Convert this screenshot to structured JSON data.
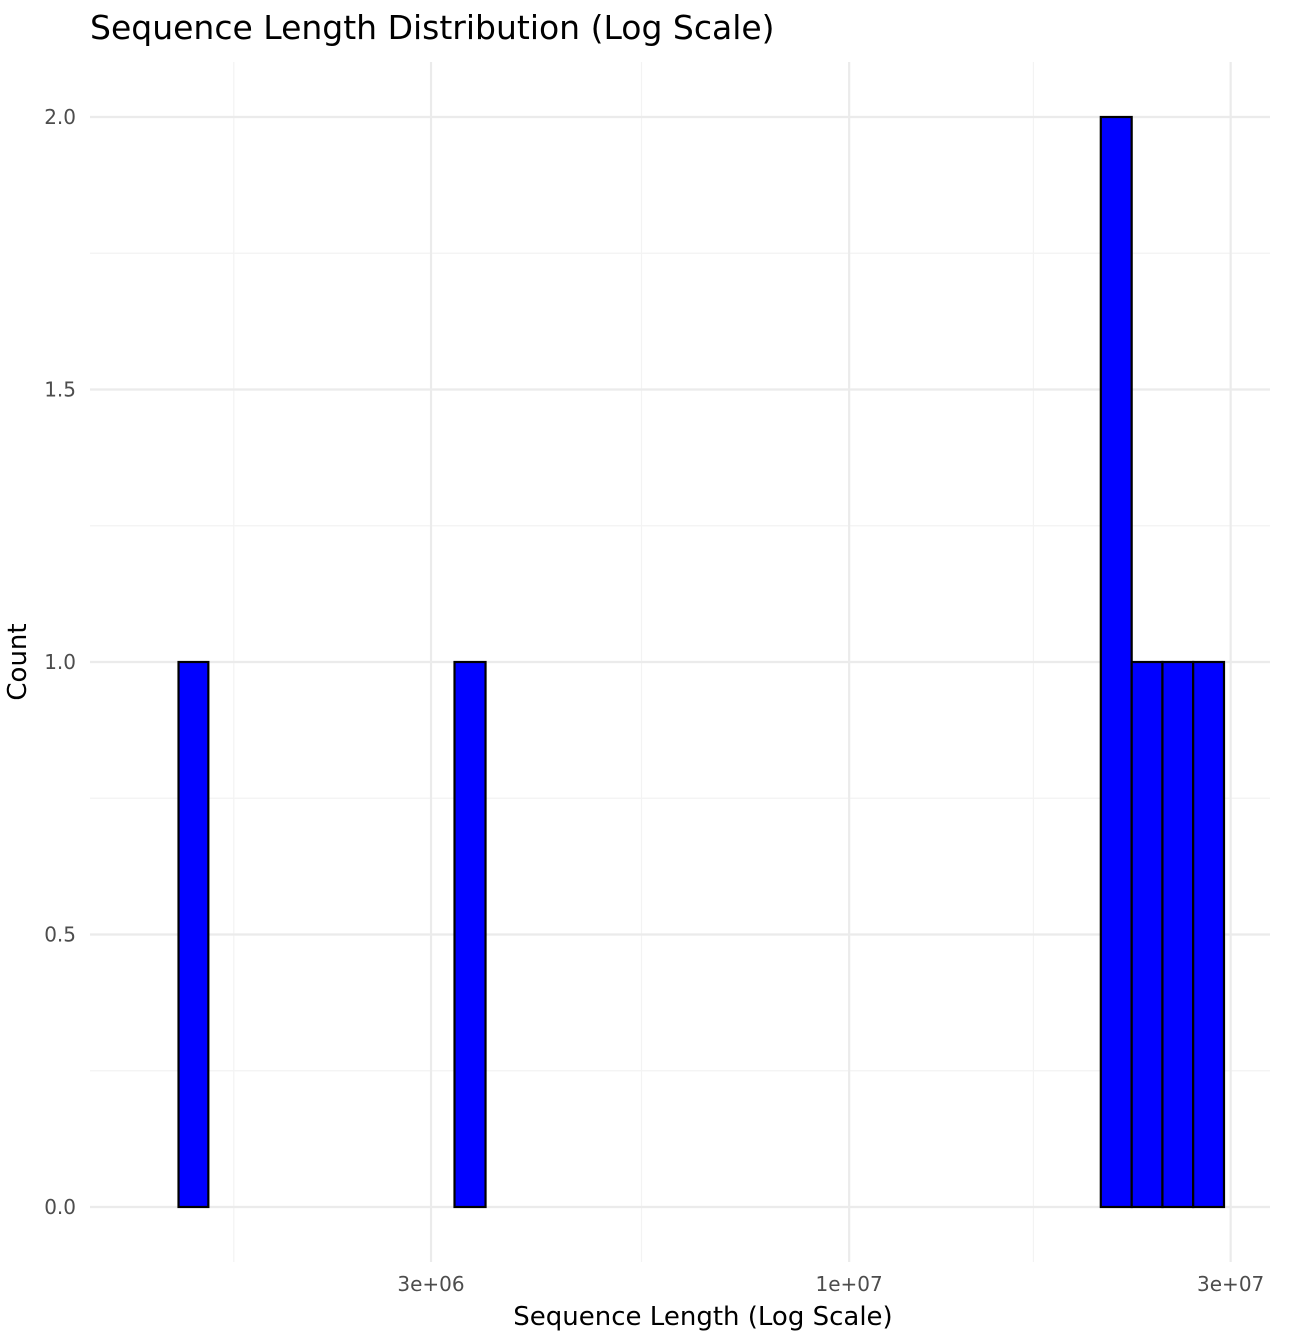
{
  "chart_data": {
    "type": "bar",
    "title": "Sequence Length Distribution (Log Scale)",
    "xlabel": "Sequence Length (Log Scale)",
    "ylabel": "Count",
    "x_scale": "log10",
    "xlim": [
      1300000,
      37000000
    ],
    "ylim": [
      -0.1,
      2.1
    ],
    "x_ticks": [
      {
        "value": 3000000,
        "label": "3e+06"
      },
      {
        "value": 10000000,
        "label": "1e+07"
      },
      {
        "value": 30000000,
        "label": "3e+07"
      }
    ],
    "x_minor_ticks": [
      1700000,
      5500000,
      17000000
    ],
    "y_ticks": [
      {
        "value": 0.0,
        "label": "0.0"
      },
      {
        "value": 0.5,
        "label": "0.5"
      },
      {
        "value": 1.0,
        "label": "1.0"
      },
      {
        "value": 1.5,
        "label": "1.5"
      },
      {
        "value": 2.0,
        "label": "2.0"
      }
    ],
    "y_minor_ticks": [
      0.25,
      0.75,
      1.25,
      1.75
    ],
    "bins": [
      {
        "x_start": 1450000,
        "x_end": 1580000,
        "count": 1
      },
      {
        "x_start": 1580000,
        "x_end": 1730000,
        "count": 0
      },
      {
        "x_start": 1730000,
        "x_end": 1890000,
        "count": 0
      },
      {
        "x_start": 1890000,
        "x_end": 2060000,
        "count": 0
      },
      {
        "x_start": 2060000,
        "x_end": 2250000,
        "count": 0
      },
      {
        "x_start": 2250000,
        "x_end": 2460000,
        "count": 0
      },
      {
        "x_start": 2460000,
        "x_end": 2690000,
        "count": 0
      },
      {
        "x_start": 2690000,
        "x_end": 2940000,
        "count": 0
      },
      {
        "x_start": 2940000,
        "x_end": 3210000,
        "count": 0
      },
      {
        "x_start": 3210000,
        "x_end": 3510000,
        "count": 1
      },
      {
        "x_start": 3510000,
        "x_end": 3830000,
        "count": 0
      },
      {
        "x_start": 3830000,
        "x_end": 4190000,
        "count": 0
      },
      {
        "x_start": 4190000,
        "x_end": 4580000,
        "count": 0
      },
      {
        "x_start": 4580000,
        "x_end": 5000000,
        "count": 0
      },
      {
        "x_start": 5000000,
        "x_end": 5470000,
        "count": 0
      },
      {
        "x_start": 5470000,
        "x_end": 5970000,
        "count": 0
      },
      {
        "x_start": 5970000,
        "x_end": 6520000,
        "count": 0
      },
      {
        "x_start": 6520000,
        "x_end": 7130000,
        "count": 0
      },
      {
        "x_start": 7130000,
        "x_end": 7790000,
        "count": 0
      },
      {
        "x_start": 7790000,
        "x_end": 8510000,
        "count": 0
      },
      {
        "x_start": 8510000,
        "x_end": 9300000,
        "count": 0
      },
      {
        "x_start": 9300000,
        "x_end": 10160000,
        "count": 0
      },
      {
        "x_start": 10160000,
        "x_end": 11100000,
        "count": 0
      },
      {
        "x_start": 11100000,
        "x_end": 12130000,
        "count": 0
      },
      {
        "x_start": 12130000,
        "x_end": 13250000,
        "count": 0
      },
      {
        "x_start": 13250000,
        "x_end": 14480000,
        "count": 0
      },
      {
        "x_start": 14480000,
        "x_end": 15820000,
        "count": 0
      },
      {
        "x_start": 15820000,
        "x_end": 17290000,
        "count": 0
      },
      {
        "x_start": 17290000,
        "x_end": 18890000,
        "count": 0
      },
      {
        "x_start": 18890000,
        "x_end": 20640000,
        "count": 0
      },
      {
        "x_start": 20640000,
        "x_end": 22560000,
        "count": 2
      },
      {
        "x_start": 22560000,
        "x_end": 24650000,
        "count": 1
      },
      {
        "x_start": 24650000,
        "x_end": 26930000,
        "count": 1
      },
      {
        "x_start": 26930000,
        "x_end": 29430000,
        "count": 1
      }
    ],
    "bar_fill": "#0000ff",
    "bar_outline": "#000000",
    "grid": true,
    "legend": "none"
  }
}
